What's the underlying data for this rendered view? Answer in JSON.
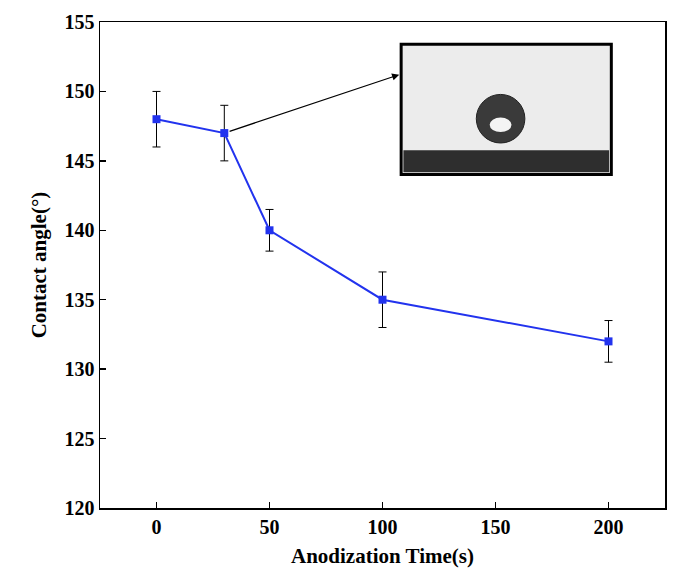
{
  "chart_data": {
    "type": "line",
    "x_label": "Anodization Time(s)",
    "y_label": "Contact angle(°)",
    "x": [
      0,
      30,
      50,
      100,
      200
    ],
    "values": [
      148,
      147,
      140,
      135,
      132
    ],
    "errors": [
      2,
      2,
      1.5,
      2,
      1.5
    ],
    "color": "#2233ee",
    "marker": "square",
    "line_style": "solid",
    "xlim": [
      -25,
      225
    ],
    "xticks": [
      0,
      50,
      100,
      150,
      200
    ],
    "ylim": [
      120,
      155
    ],
    "yticks": [
      120,
      125,
      130,
      135,
      140,
      145,
      150,
      155
    ],
    "grid": false
  }
}
